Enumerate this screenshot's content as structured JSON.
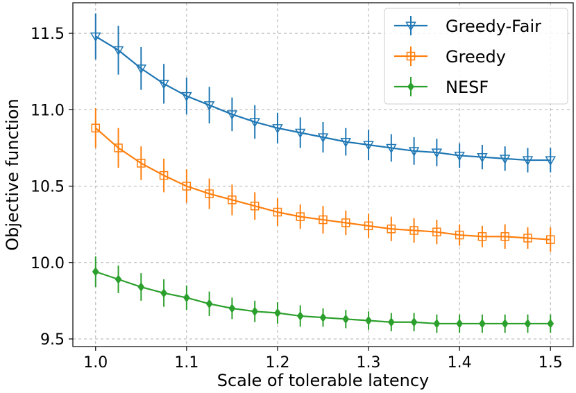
{
  "chart_data": {
    "type": "line",
    "title": "",
    "xlabel": "Scale of tolerable latency",
    "ylabel": "Objective function",
    "xlim": [
      0.975,
      1.525
    ],
    "ylim": [
      9.45,
      11.7
    ],
    "grid": true,
    "legend_position": "top-right",
    "x": [
      1.0,
      1.025,
      1.05,
      1.075,
      1.1,
      1.125,
      1.15,
      1.175,
      1.2,
      1.225,
      1.25,
      1.275,
      1.3,
      1.325,
      1.35,
      1.375,
      1.4,
      1.425,
      1.45,
      1.475,
      1.5
    ],
    "xticks": [
      {
        "value": 1.0,
        "label": "1.0"
      },
      {
        "value": 1.1,
        "label": "1.1"
      },
      {
        "value": 1.2,
        "label": "1.2"
      },
      {
        "value": 1.3,
        "label": "1.3"
      },
      {
        "value": 1.4,
        "label": "1.4"
      },
      {
        "value": 1.5,
        "label": "1.5"
      }
    ],
    "yticks": [
      {
        "value": 9.5,
        "label": "9.5"
      },
      {
        "value": 10.0,
        "label": "10.0"
      },
      {
        "value": 10.5,
        "label": "10.5"
      },
      {
        "value": 11.0,
        "label": "11.0"
      },
      {
        "value": 11.5,
        "label": "11.5"
      }
    ],
    "series": [
      {
        "name": "Greedy-Fair",
        "color": "#1f77b4",
        "marker": "triangle-down",
        "values": [
          11.48,
          11.39,
          11.27,
          11.17,
          11.09,
          11.03,
          10.97,
          10.92,
          10.88,
          10.85,
          10.82,
          10.79,
          10.77,
          10.75,
          10.73,
          10.72,
          10.7,
          10.69,
          10.68,
          10.67,
          10.67
        ],
        "error": [
          0.15,
          0.16,
          0.14,
          0.13,
          0.12,
          0.12,
          0.11,
          0.11,
          0.1,
          0.1,
          0.1,
          0.09,
          0.1,
          0.09,
          0.09,
          0.09,
          0.08,
          0.08,
          0.08,
          0.08,
          0.08
        ]
      },
      {
        "name": "Greedy",
        "color": "#ff7f0e",
        "marker": "square",
        "values": [
          10.88,
          10.75,
          10.65,
          10.57,
          10.5,
          10.45,
          10.41,
          10.37,
          10.33,
          10.3,
          10.28,
          10.26,
          10.24,
          10.22,
          10.21,
          10.2,
          10.18,
          10.17,
          10.17,
          10.16,
          10.15
        ],
        "error": [
          0.13,
          0.13,
          0.11,
          0.11,
          0.11,
          0.1,
          0.1,
          0.09,
          0.09,
          0.08,
          0.09,
          0.08,
          0.08,
          0.08,
          0.08,
          0.08,
          0.07,
          0.07,
          0.08,
          0.07,
          0.08
        ]
      },
      {
        "name": "NESF",
        "color": "#2ca02c",
        "marker": "diamond",
        "values": [
          9.94,
          9.89,
          9.84,
          9.8,
          9.77,
          9.73,
          9.7,
          9.68,
          9.67,
          9.65,
          9.64,
          9.63,
          9.62,
          9.61,
          9.61,
          9.6,
          9.6,
          9.6,
          9.6,
          9.6,
          9.6
        ],
        "error": [
          0.1,
          0.09,
          0.09,
          0.09,
          0.08,
          0.08,
          0.07,
          0.07,
          0.07,
          0.07,
          0.06,
          0.06,
          0.06,
          0.06,
          0.06,
          0.06,
          0.06,
          0.06,
          0.06,
          0.06,
          0.06
        ]
      }
    ]
  }
}
